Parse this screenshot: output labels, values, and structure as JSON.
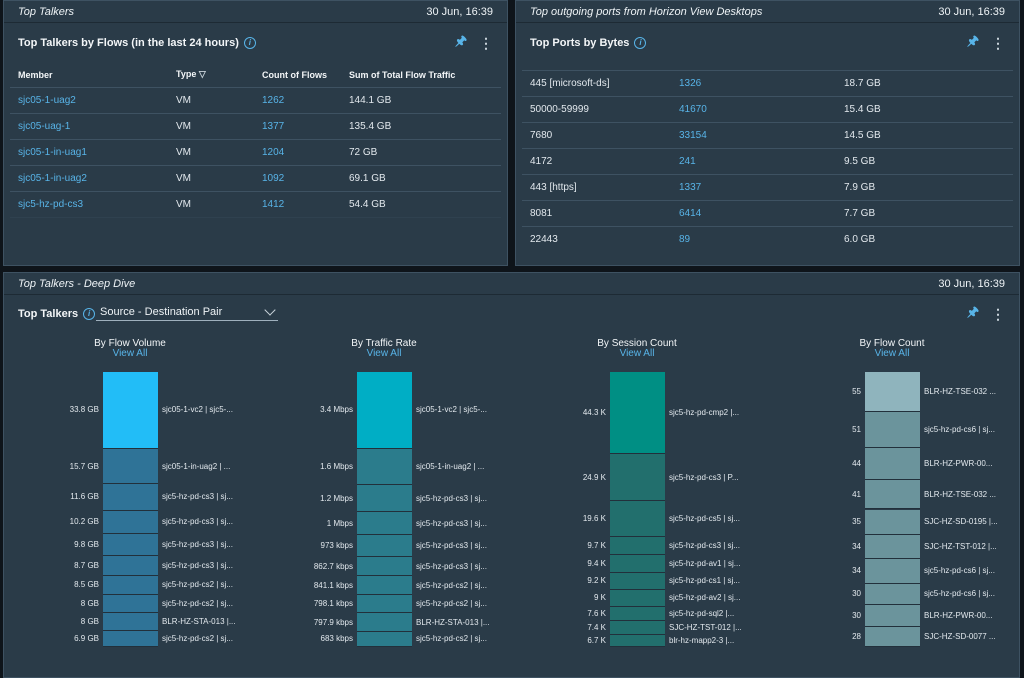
{
  "panel1": {
    "title": "Top Talkers",
    "timestamp": "30 Jun, 16:39",
    "subtitle": "Top Talkers by Flows (in the last 24 hours)",
    "columns": [
      "Member",
      "Type",
      "Count of Flows",
      "Sum of Total Flow Traffic"
    ],
    "rows": [
      {
        "member": "sjc05-1-uag2",
        "type": "VM",
        "count": "1262",
        "sum": "144.1 GB"
      },
      {
        "member": "sjc05-uag-1",
        "type": "VM",
        "count": "1377",
        "sum": "135.4 GB"
      },
      {
        "member": "sjc05-1-in-uag1",
        "type": "VM",
        "count": "1204",
        "sum": "72 GB"
      },
      {
        "member": "sjc05-1-in-uag2",
        "type": "VM",
        "count": "1092",
        "sum": "69.1 GB"
      },
      {
        "member": "sjc5-hz-pd-cs3",
        "type": "VM",
        "count": "1412",
        "sum": "54.4 GB"
      }
    ]
  },
  "panel2": {
    "title": "Top outgoing ports from Horizon View Desktops",
    "timestamp": "30 Jun, 16:39",
    "subtitle": "Top Ports by Bytes",
    "rows": [
      {
        "port": "445 [microsoft-ds]",
        "count": "1326",
        "bytes": "18.7 GB"
      },
      {
        "port": "50000-59999",
        "count": "41670",
        "bytes": "15.4 GB"
      },
      {
        "port": "7680",
        "count": "33154",
        "bytes": "14.5 GB"
      },
      {
        "port": "4172",
        "count": "241",
        "bytes": "9.5 GB"
      },
      {
        "port": "443 [https]",
        "count": "1337",
        "bytes": "7.9 GB"
      },
      {
        "port": "8081",
        "count": "6414",
        "bytes": "7.7 GB"
      },
      {
        "port": "22443",
        "count": "89",
        "bytes": "6.0 GB"
      }
    ]
  },
  "panel3": {
    "title": "Top Talkers - Deep Dive",
    "timestamp": "30 Jun, 16:39",
    "label": "Top Talkers",
    "dropdown_value": "Source - Destination Pair",
    "view_all": "View All"
  },
  "colors": {
    "c1": "#22bdf7",
    "c2": "#00aec5",
    "c3": "#008f84",
    "c4": "#8fb4bd"
  },
  "chart_data": [
    {
      "type": "bar",
      "title": "By Flow Volume",
      "values": [
        33.8,
        15.7,
        11.6,
        10.2,
        9.8,
        8.7,
        8.5,
        8,
        8,
        6.9
      ],
      "value_labels": [
        "33.8 GB",
        "15.7 GB",
        "11.6 GB",
        "10.2 GB",
        "9.8 GB",
        "8.7 GB",
        "8.5 GB",
        "8 GB",
        "8 GB",
        "6.9 GB"
      ],
      "categories": [
        "sjc05-1-vc2 | sjc5-...",
        "sjc05-1-in-uag2 | ...",
        "sjc5-hz-pd-cs3 | sj...",
        "sjc5-hz-pd-cs3 | sj...",
        "sjc5-hz-pd-cs3 | sj...",
        "sjc5-hz-pd-cs3 | sj...",
        "sjc5-hz-pd-cs2 | sj...",
        "sjc5-hz-pd-cs2 | sj...",
        "BLR-HZ-STA-013 |...",
        "sjc5-hz-pd-cs2 | sj..."
      ]
    },
    {
      "type": "bar",
      "title": "By Traffic Rate",
      "values": [
        3.4,
        1.6,
        1.2,
        1,
        0.973,
        0.8627,
        0.8411,
        0.7981,
        0.7979,
        0.683
      ],
      "value_labels": [
        "3.4 Mbps",
        "1.6 Mbps",
        "1.2 Mbps",
        "1 Mbps",
        "973 kbps",
        "862.7 kbps",
        "841.1 kbps",
        "798.1 kbps",
        "797.9 kbps",
        "683 kbps"
      ],
      "categories": [
        "sjc05-1-vc2 | sjc5-...",
        "sjc05-1-in-uag2 | ...",
        "sjc5-hz-pd-cs3 | sj...",
        "sjc5-hz-pd-cs3 | sj...",
        "sjc5-hz-pd-cs3 | sj...",
        "sjc5-hz-pd-cs3 | sj...",
        "sjc5-hz-pd-cs2 | sj...",
        "sjc5-hz-pd-cs2 | sj...",
        "BLR-HZ-STA-013 |...",
        "sjc5-hz-pd-cs2 | sj..."
      ]
    },
    {
      "type": "bar",
      "title": "By Session Count",
      "values": [
        44.3,
        24.9,
        19.6,
        9.7,
        9.4,
        9.2,
        9,
        7.6,
        7.4,
        6.7
      ],
      "value_labels": [
        "44.3 K",
        "24.9 K",
        "19.6 K",
        "9.7 K",
        "9.4 K",
        "9.2 K",
        "9 K",
        "7.6 K",
        "7.4 K",
        "6.7 K"
      ],
      "categories": [
        "sjc5-hz-pd-cmp2 |...",
        "sjc5-hz-pd-cs3 | P...",
        "sjc5-hz-pd-cs5 | sj...",
        "sjc5-hz-pd-cs3 | sj...",
        "sjc5-hz-pd-av1 | sj...",
        "sjc5-hz-pd-cs1 | sj...",
        "sjc5-hz-pd-av2 | sj...",
        "sjc5-hz-pd-sql2 |...",
        "SJC-HZ-TST-012 |...",
        "blr-hz-mapp2-3 |..."
      ]
    },
    {
      "type": "bar",
      "title": "By Flow Count",
      "values": [
        55,
        51,
        44,
        41,
        35,
        34,
        34,
        30,
        30,
        28
      ],
      "value_labels": [
        "55",
        "51",
        "44",
        "41",
        "35",
        "34",
        "34",
        "30",
        "30",
        "28"
      ],
      "categories": [
        "BLR-HZ-TSE-032 ...",
        "sjc5-hz-pd-cs6 | sj...",
        "BLR-HZ-PWR-00...",
        "BLR-HZ-TSE-032 ...",
        "SJC-HZ-SD-0195 |...",
        "SJC-HZ-TST-012 |...",
        "sjc5-hz-pd-cs6 | sj...",
        "sjc5-hz-pd-cs6 | sj...",
        "BLR-HZ-PWR-00...",
        "SJC-HZ-SD-0077 ..."
      ]
    }
  ]
}
